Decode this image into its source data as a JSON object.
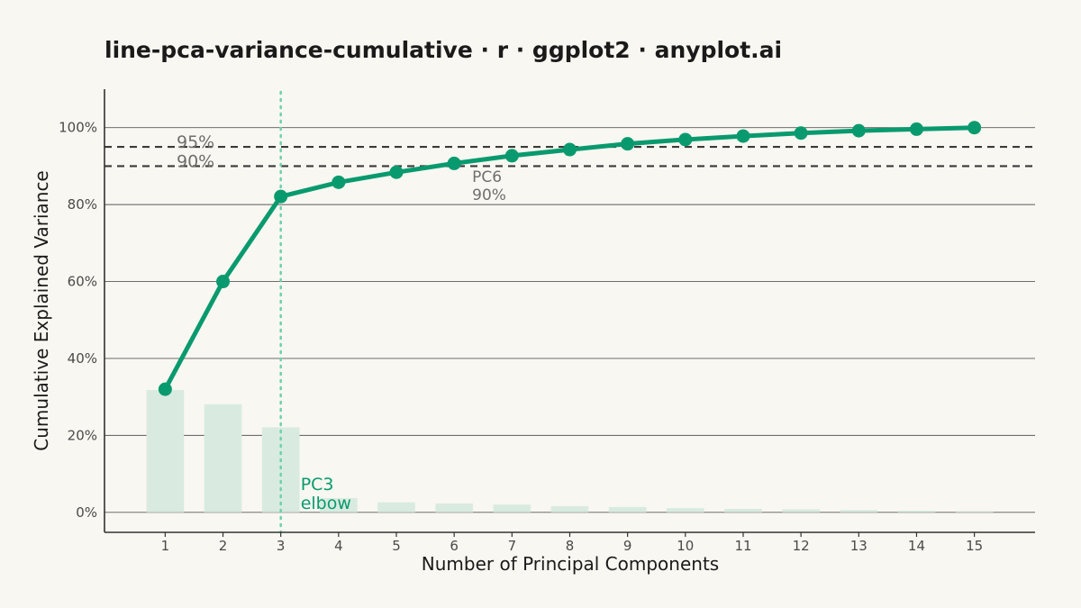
{
  "chart_data": {
    "type": "line",
    "title": "line-pca-variance-cumulative · r · ggplot2 · anyplot.ai",
    "xlabel": "Number of Principal Components",
    "ylabel": "Cumulative Explained Variance",
    "x": [
      1,
      2,
      3,
      4,
      5,
      6,
      7,
      8,
      9,
      10,
      11,
      12,
      13,
      14,
      15
    ],
    "x_tick_labels": [
      "1",
      "2",
      "3",
      "4",
      "5",
      "6",
      "7",
      "8",
      "9",
      "10",
      "11",
      "12",
      "13",
      "14",
      "15"
    ],
    "y_tick_values": [
      0,
      20,
      40,
      60,
      80,
      100
    ],
    "y_tick_labels": [
      "0%",
      "20%",
      "40%",
      "60%",
      "80%",
      "100%"
    ],
    "xlim": [
      -0.05,
      16.05
    ],
    "ylim": [
      -5.2,
      110
    ],
    "series": [
      {
        "type": "line",
        "values": [
          32.0,
          60.0,
          82.1,
          85.8,
          88.4,
          90.7,
          92.7,
          94.3,
          95.8,
          96.9,
          97.8,
          98.6,
          99.2,
          99.6,
          100.0
        ],
        "color": "#089a6e"
      },
      {
        "type": "bar",
        "values": [
          31.8,
          28.1,
          22.1,
          3.7,
          2.6,
          2.3,
          2.0,
          1.6,
          1.4,
          1.1,
          0.9,
          0.8,
          0.6,
          0.4,
          0.3
        ],
        "color": "#d9ebe0"
      }
    ],
    "thresholds": [
      {
        "value": 95,
        "label": "95%",
        "style": "dashed"
      },
      {
        "value": 90,
        "label": "90%",
        "style": "dashed"
      }
    ],
    "annotations": {
      "elbow": {
        "x": 3,
        "line1": "PC3",
        "line2": "elbow",
        "color": "#6cd1ad"
      },
      "crossing": {
        "x": 6,
        "line1": "PC6",
        "line2": "90%"
      }
    },
    "grid": "horizontal-major",
    "legend": "none"
  },
  "colors": {
    "background": "#f9f7f1",
    "line": "#089a6e",
    "bars": "#d9ebe0",
    "elbow_line": "#6cd1ad",
    "threshold": "#3a3a3a",
    "grid": "#5a5a5a",
    "axis": "#333333"
  }
}
